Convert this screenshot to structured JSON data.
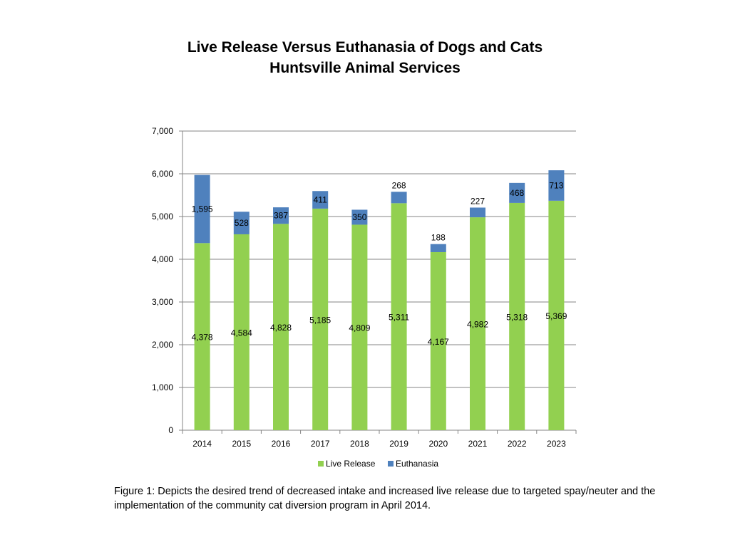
{
  "chart_data": {
    "type": "bar",
    "stacked": true,
    "title": "Live Release Versus Euthanasia of Dogs and Cats",
    "subtitle": "Huntsville Animal Services",
    "categories": [
      "2014",
      "2015",
      "2016",
      "2017",
      "2018",
      "2019",
      "2020",
      "2021",
      "2022",
      "2023"
    ],
    "series": [
      {
        "name": "Live Release",
        "color": "#92D050",
        "values": [
          4378,
          4584,
          4828,
          5185,
          4809,
          5311,
          4167,
          4982,
          5318,
          5369
        ],
        "labels": [
          "4,378",
          "4,584",
          "4,828",
          "5,185",
          "4,809",
          "5,311",
          "4,167",
          "4,982",
          "5,318",
          "5,369"
        ]
      },
      {
        "name": "Euthanasia",
        "color": "#4F81BD",
        "values": [
          1595,
          528,
          387,
          411,
          350,
          268,
          188,
          227,
          468,
          713
        ],
        "labels": [
          "1,595",
          "528",
          "387",
          "411",
          "350",
          "268",
          "188",
          "227",
          "468",
          "713"
        ]
      }
    ],
    "ylim": [
      0,
      7000
    ],
    "yticks": [
      0,
      1000,
      2000,
      3000,
      4000,
      5000,
      6000,
      7000
    ],
    "ytick_labels": [
      "0",
      "1,000",
      "2,000",
      "3,000",
      "4,000",
      "5,000",
      "6,000",
      "7,000"
    ],
    "grid": true,
    "legend_position": "bottom"
  },
  "caption": "Figure 1: Depicts the desired trend of decreased intake and increased live release due to targeted spay/neuter and the implementation of the community cat diversion program in April 2014."
}
